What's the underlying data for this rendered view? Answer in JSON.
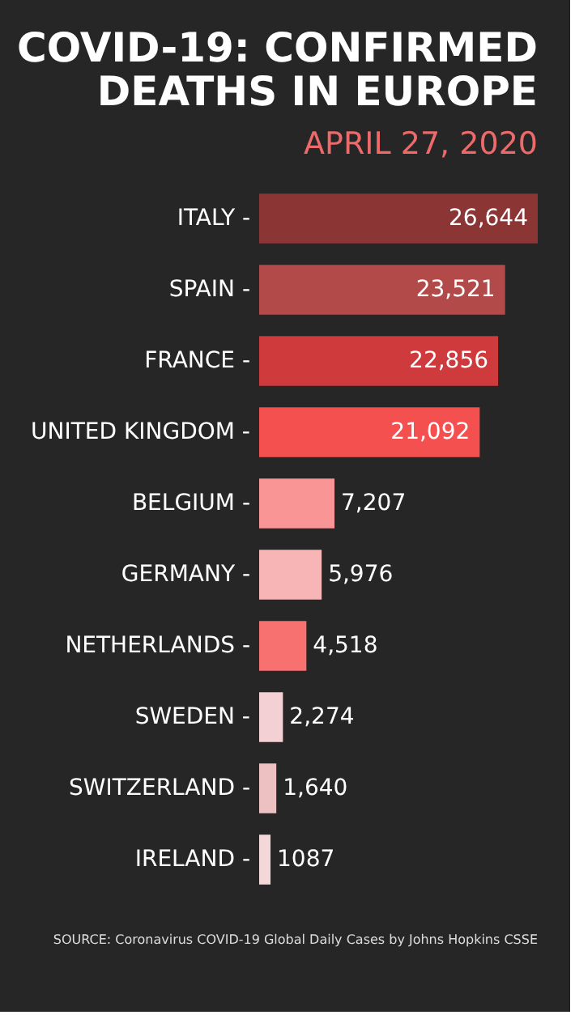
{
  "chart_data": {
    "type": "bar",
    "orientation": "horizontal",
    "title": [
      "COVID-19: CONFIRMED",
      "DEATHS IN EUROPE"
    ],
    "subtitle": "APRIL 27, 2020",
    "categories": [
      "ITALY -",
      "SPAIN -",
      "FRANCE -",
      "UNITED KINGDOM -",
      "BELGIUM -",
      "GERMANY -",
      "NETHERLANDS -",
      "SWEDEN -",
      "SWITZERLAND -",
      "IRELAND -"
    ],
    "values": [
      26644,
      23521,
      22856,
      21092,
      7207,
      5976,
      4518,
      2274,
      1640,
      1087
    ],
    "value_labels": [
      "26,644",
      "23,521",
      "22,856",
      "21,092",
      "7,207",
      "5,976",
      "4,518",
      "2,274",
      "1,640",
      "1087"
    ],
    "colors": [
      "#8b3535",
      "#b34a4a",
      "#cf3a3d",
      "#f55050",
      "#fa9595",
      "#f8b5b6",
      "#f87171",
      "#f2d0d3",
      "#edc0c1",
      "#f2d8d9"
    ],
    "annotations": [
      "SOURCE: Coronavirus COVID-19 Global Daily Cases by Johns Hopkins CSSE"
    ],
    "tick_labels": "y"
  }
}
